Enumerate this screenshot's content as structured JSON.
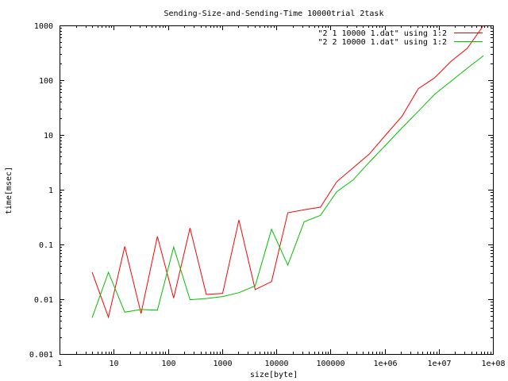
{
  "chart_data": {
    "type": "line",
    "title": "Sending-Size-and-Sending-Time 10000trial 2task",
    "xlabel": "size[byte]",
    "ylabel": "time[msec]",
    "x_scale": "log",
    "y_scale": "log",
    "xlim": [
      1,
      100000000
    ],
    "ylim": [
      0.001,
      1000
    ],
    "x_ticks": [
      {
        "value": 1,
        "label": "1"
      },
      {
        "value": 10,
        "label": "10"
      },
      {
        "value": 100,
        "label": "100"
      },
      {
        "value": 1000,
        "label": "1000"
      },
      {
        "value": 10000,
        "label": "10000"
      },
      {
        "value": 100000,
        "label": "100000"
      },
      {
        "value": 1000000,
        "label": "1e+06"
      },
      {
        "value": 10000000,
        "label": "1e+07"
      },
      {
        "value": 100000000,
        "label": "1e+08"
      }
    ],
    "y_ticks": [
      {
        "value": 0.001,
        "label": "0.001"
      },
      {
        "value": 0.01,
        "label": "0.01"
      },
      {
        "value": 0.1,
        "label": "0.1"
      },
      {
        "value": 1,
        "label": "1"
      },
      {
        "value": 10,
        "label": "10"
      },
      {
        "value": 100,
        "label": "100"
      },
      {
        "value": 1000,
        "label": "1000"
      }
    ],
    "grid": false,
    "legend_position": "top-right",
    "series": [
      {
        "name": "\"2 1 10000 1.dat\" using 1:2",
        "color": "#ff0000",
        "x": [
          4,
          8,
          16,
          32,
          64,
          128,
          256,
          512,
          1024,
          2048,
          4096,
          8192,
          16384,
          32768,
          65536,
          131072,
          262144,
          524288,
          1048576,
          2097152,
          4194304,
          8388608,
          16777216,
          33554432,
          67108864
        ],
        "y": [
          0.031,
          0.0047,
          0.092,
          0.0055,
          0.14,
          0.0105,
          0.2,
          0.0122,
          0.0128,
          0.28,
          0.015,
          0.021,
          0.38,
          0.43,
          0.48,
          1.4,
          2.5,
          4.5,
          10,
          22,
          70,
          110,
          220,
          380,
          1000
        ]
      },
      {
        "name": "\"2 2 10000 1.dat\" using 1:2",
        "color": "#00c000",
        "x": [
          4,
          8,
          16,
          32,
          64,
          128,
          256,
          512,
          1024,
          2048,
          4096,
          8192,
          16384,
          32768,
          65536,
          131072,
          262144,
          524288,
          1048576,
          2097152,
          4194304,
          8388608,
          16777216,
          33554432,
          67108864
        ],
        "y": [
          0.0046,
          0.031,
          0.0058,
          0.0065,
          0.0063,
          0.09,
          0.0098,
          0.0103,
          0.0112,
          0.0132,
          0.0175,
          0.19,
          0.042,
          0.26,
          0.34,
          0.92,
          1.5,
          3.2,
          6.5,
          13.5,
          27,
          55,
          95,
          165,
          280
        ]
      }
    ]
  }
}
